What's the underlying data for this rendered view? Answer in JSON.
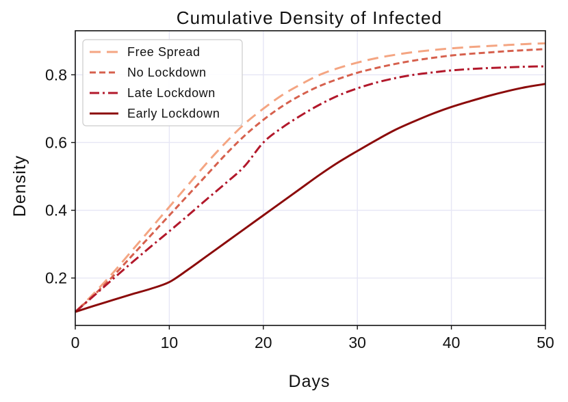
{
  "chart_data": {
    "type": "line",
    "title": "Cumulative Density of Infected",
    "xlabel": "Days",
    "ylabel": "Density",
    "xlim": [
      0,
      50
    ],
    "ylim": [
      0.06,
      0.93
    ],
    "xticks": [
      0,
      10,
      20,
      30,
      40,
      50
    ],
    "xtick_labels": [
      "0",
      "10",
      "20",
      "30",
      "40",
      "50"
    ],
    "yticks": [
      0.2,
      0.4,
      0.6,
      0.8
    ],
    "ytick_labels": [
      "0.2",
      "0.4",
      "0.6",
      "0.8"
    ],
    "grid": true,
    "legend_position": "top-left",
    "x": [
      0,
      2,
      4,
      6,
      8,
      10,
      12,
      14,
      16,
      18,
      20,
      22,
      24,
      26,
      28,
      30,
      32,
      34,
      36,
      38,
      40,
      42,
      44,
      46,
      48,
      50
    ],
    "series": [
      {
        "name": "Free Spread",
        "color": "#f4a582",
        "dash": "dashed",
        "values": [
          0.1,
          0.155,
          0.215,
          0.28,
          0.345,
          0.41,
          0.475,
          0.54,
          0.6,
          0.655,
          0.7,
          0.74,
          0.772,
          0.8,
          0.82,
          0.836,
          0.849,
          0.859,
          0.867,
          0.873,
          0.878,
          0.882,
          0.885,
          0.888,
          0.891,
          0.893
        ]
      },
      {
        "name": "No Lockdown",
        "color": "#d6604d",
        "dash": "dotted-dense",
        "values": [
          0.1,
          0.15,
          0.205,
          0.265,
          0.325,
          0.385,
          0.445,
          0.505,
          0.565,
          0.62,
          0.667,
          0.707,
          0.74,
          0.767,
          0.788,
          0.806,
          0.82,
          0.832,
          0.842,
          0.85,
          0.857,
          0.862,
          0.866,
          0.87,
          0.873,
          0.876
        ]
      },
      {
        "name": "Late Lockdown",
        "color": "#b2182b",
        "dash": "dashdot",
        "values": [
          0.1,
          0.148,
          0.197,
          0.245,
          0.292,
          0.338,
          0.385,
          0.433,
          0.48,
          0.53,
          0.6,
          0.644,
          0.68,
          0.712,
          0.739,
          0.76,
          0.777,
          0.79,
          0.8,
          0.807,
          0.813,
          0.817,
          0.82,
          0.822,
          0.824,
          0.825
        ]
      },
      {
        "name": "Early Lockdown",
        "color": "#8b0a0a",
        "dash": "solid",
        "values": [
          0.1,
          0.118,
          0.135,
          0.152,
          0.168,
          0.188,
          0.225,
          0.265,
          0.305,
          0.345,
          0.385,
          0.425,
          0.465,
          0.505,
          0.542,
          0.575,
          0.607,
          0.637,
          0.662,
          0.685,
          0.705,
          0.722,
          0.738,
          0.752,
          0.764,
          0.773
        ]
      }
    ]
  }
}
